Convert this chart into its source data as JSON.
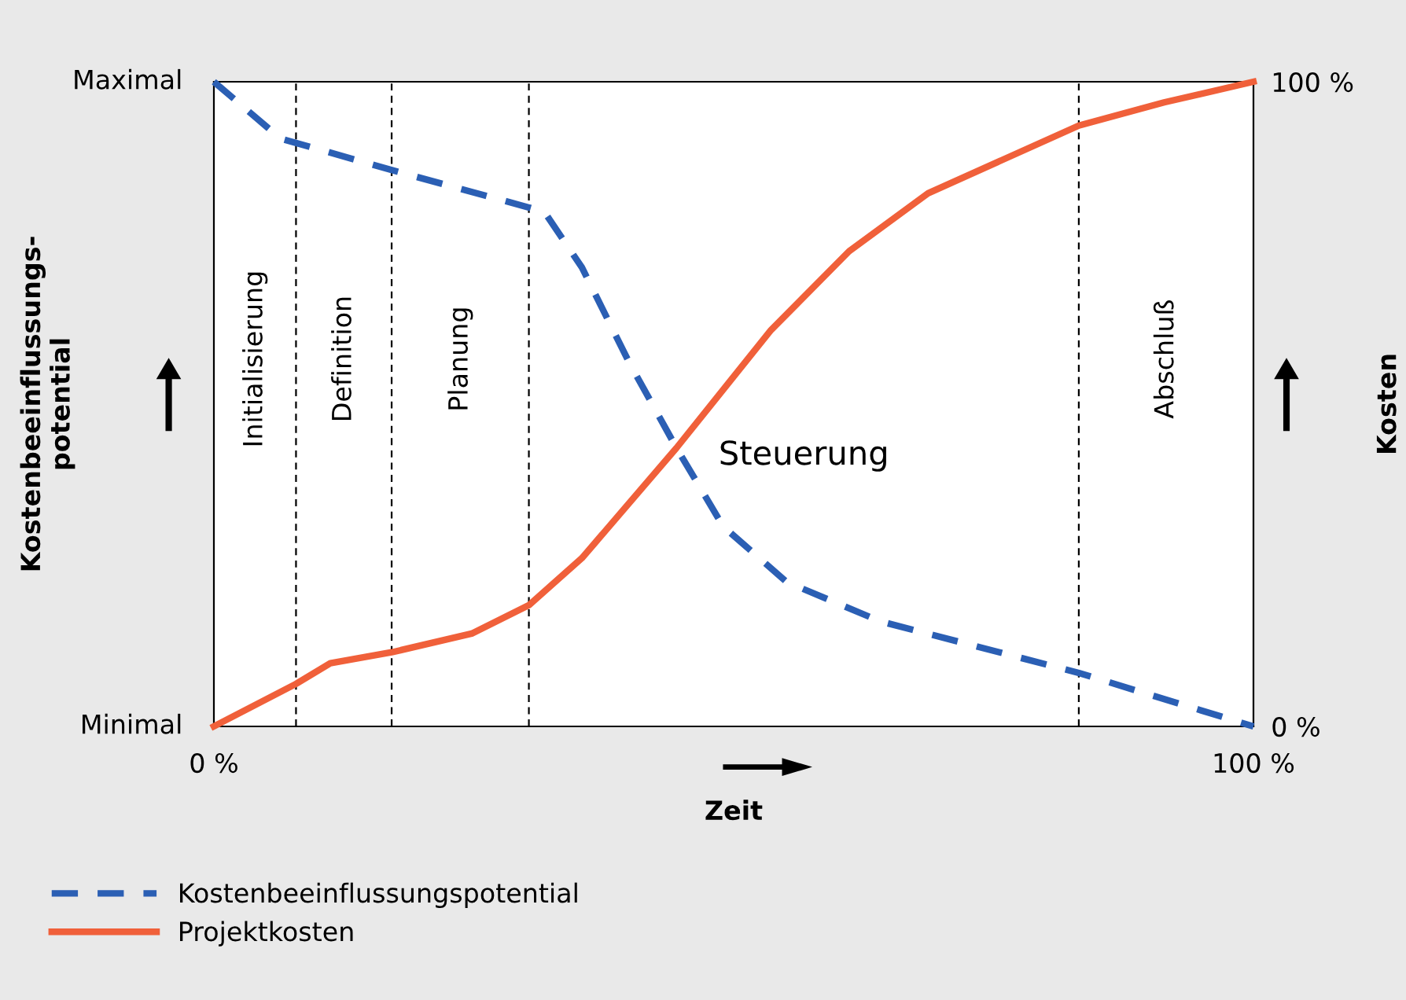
{
  "chart_data": {
    "type": "line",
    "xlabel": "Zeit",
    "ylabel": "Kosten",
    "xlim": [
      0,
      100
    ],
    "xticks": [
      {
        "value": 0,
        "label": "0 %"
      },
      {
        "value": 100,
        "label": "100 %"
      }
    ],
    "ylim": [
      0,
      100
    ],
    "yticks": [
      {
        "value": 0,
        "label": "0 %"
      },
      {
        "value": 100,
        "label": "100 %"
      }
    ],
    "grid": false,
    "legend": "bottom left",
    "marker": "none",
    "series": [
      {
        "name": "Kostenbeeinflussungspotential",
        "color": "#2b5fb4",
        "line_style": "dashed",
        "x": [
          0,
          6.4,
          17.1,
          30.3,
          31.8,
          35.4,
          39.9,
          44.5,
          49.0,
          55.1,
          64.1,
          83.2,
          100
        ],
        "values": [
          100,
          91.2,
          86.3,
          80.5,
          79.8,
          71.2,
          56.6,
          43.2,
          31.0,
          22.4,
          16.3,
          8.3,
          0
        ]
      },
      {
        "name": "Projektkosten",
        "color": "#f0603a",
        "line_style": "solid",
        "x": [
          0,
          7.9,
          11.2,
          17.1,
          24.8,
          30.3,
          35.4,
          44.5,
          53.6,
          61.1,
          68.7,
          83.2,
          91.4,
          100
        ],
        "values": [
          0,
          6.6,
          9.8,
          11.5,
          14.4,
          18.8,
          26.1,
          43.2,
          61.5,
          73.7,
          82.7,
          93.2,
          96.8,
          100
        ]
      }
    ],
    "ref_lines": [
      {
        "axis": "x",
        "value": 7.9,
        "color": "#000000",
        "line_style": "dashed"
      },
      {
        "axis": "x",
        "value": 17.1,
        "color": "#000000",
        "line_style": "dashed"
      },
      {
        "axis": "x",
        "value": 30.3,
        "color": "#000000",
        "line_style": "dashed"
      },
      {
        "axis": "x",
        "value": 83.2,
        "color": "#000000",
        "line_style": "dashed"
      }
    ],
    "annotations": [
      "Maximal",
      "Minimal",
      "Kostenbeeinflussungs-\npotential",
      "Initialisierung",
      "Definition",
      "Planung",
      "Steuerung",
      "Abschluß"
    ]
  }
}
